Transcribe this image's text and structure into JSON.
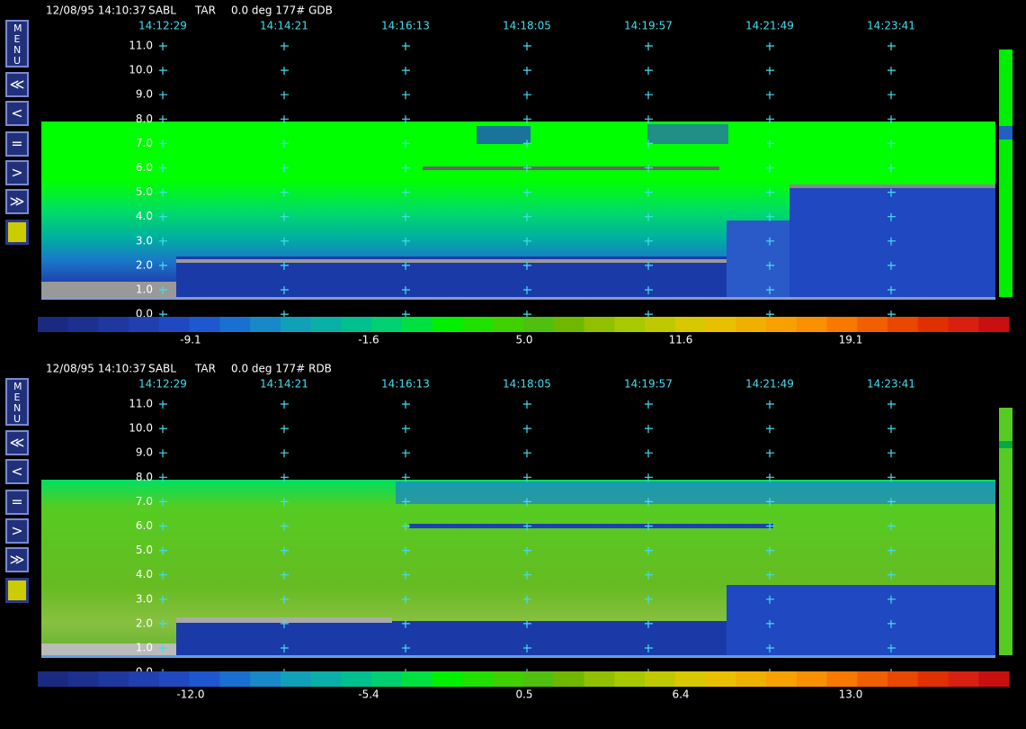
{
  "menu": {
    "label": "MENU",
    "buttons": [
      "≪",
      "<",
      "=",
      ">",
      "≫"
    ]
  },
  "panels": [
    {
      "header": {
        "datetime": "12/08/95 14:10:37",
        "site": "SABL",
        "mode": "TAR",
        "info": "0.0 deg 177# GDB"
      },
      "times": [
        "14:12:29",
        "14:14:21",
        "14:16:13",
        "14:18:05",
        "14:19:57",
        "14:21:49",
        "14:23:41"
      ],
      "altitudes": [
        "11.0",
        "10.0",
        "9.0",
        "8.0",
        "7.0",
        "6.0",
        "5.0",
        "4.0",
        "3.0",
        "2.0",
        "1.0",
        "0.0"
      ],
      "colorbar_labels": [
        "-9.1",
        "-1.6",
        "5.0",
        "11.6",
        "19.1"
      ]
    },
    {
      "header": {
        "datetime": "12/08/95 14:10:37",
        "site": "SABL",
        "mode": "TAR",
        "info": "0.0 deg 177# RDB"
      },
      "times": [
        "14:12:29",
        "14:14:21",
        "14:16:13",
        "14:18:05",
        "14:19:57",
        "14:21:49",
        "14:23:41"
      ],
      "altitudes": [
        "11.0",
        "10.0",
        "9.0",
        "8.0",
        "7.0",
        "6.0",
        "5.0",
        "4.0",
        "3.0",
        "2.0",
        "1.0",
        "0.0"
      ],
      "colorbar_labels": [
        "-12.0",
        "-5.4",
        "0.5",
        "6.4",
        "13.0"
      ]
    }
  ]
}
